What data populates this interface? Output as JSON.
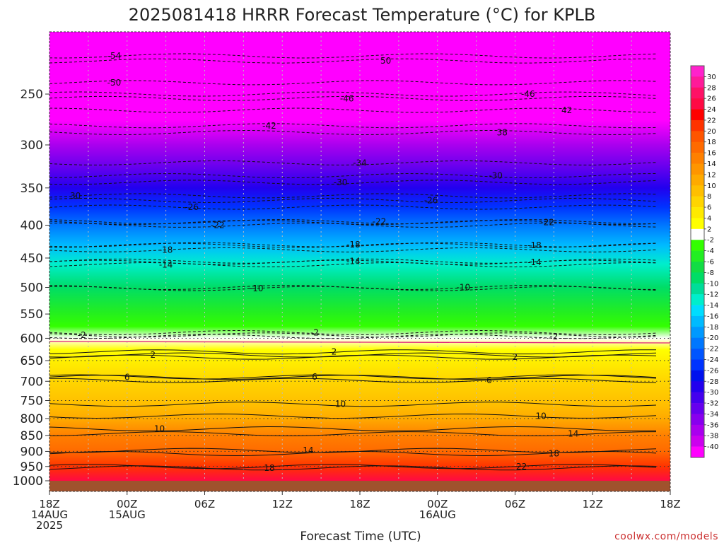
{
  "chart_data": {
    "type": "heatmap",
    "title": "2025081418 HRRR Forecast Temperature (°C) for KPLB",
    "xlabel": "Forecast Time (UTC)",
    "ylabel": "",
    "credit": "coolwx.com/models",
    "x_ticks": [
      {
        "hour": 0,
        "lines": [
          "18Z",
          "14AUG",
          "2025"
        ]
      },
      {
        "hour": 6,
        "lines": [
          "00Z",
          "15AUG"
        ]
      },
      {
        "hour": 12,
        "lines": [
          "06Z"
        ]
      },
      {
        "hour": 18,
        "lines": [
          "12Z"
        ]
      },
      {
        "hour": 24,
        "lines": [
          "18Z"
        ]
      },
      {
        "hour": 30,
        "lines": [
          "00Z",
          "16AUG"
        ]
      },
      {
        "hour": 36,
        "lines": [
          "06Z"
        ]
      },
      {
        "hour": 42,
        "lines": [
          "12Z"
        ]
      },
      {
        "hour": 48,
        "lines": [
          "18Z"
        ]
      }
    ],
    "xlim": [
      0,
      48
    ],
    "ylim": [
      1000,
      200
    ],
    "y_scale": "log",
    "y_ticks": [
      250,
      300,
      350,
      400,
      450,
      500,
      550,
      600,
      650,
      700,
      750,
      800,
      850,
      900,
      950,
      1000
    ],
    "grid": true,
    "colorbar": {
      "position": "right",
      "levels": [
        30,
        28,
        26,
        24,
        22,
        20,
        18,
        16,
        14,
        12,
        10,
        8,
        6,
        4,
        2,
        -2,
        -4,
        -6,
        -8,
        -10,
        -12,
        -14,
        -16,
        -18,
        -20,
        -22,
        -24,
        -26,
        -28,
        -30,
        -32,
        -34,
        -36,
        -38,
        -40
      ],
      "colors": [
        "#ff22cc",
        "#ff1a99",
        "#ff1166",
        "#ff0a44",
        "#ff0000",
        "#ff3300",
        "#ff5500",
        "#ff6a00",
        "#ff8000",
        "#ff9500",
        "#ffaa00",
        "#ffbf00",
        "#ffd500",
        "#ffea00",
        "#ffff00",
        "#ffffff",
        "#33ff00",
        "#22ee22",
        "#11dd44",
        "#00dd66",
        "#00dd99",
        "#00eecc",
        "#00ddff",
        "#00bbff",
        "#0099ff",
        "#0077ff",
        "#0055ff",
        "#0033ff",
        "#0011ee",
        "#2200ee",
        "#4400ee",
        "#6600ee",
        "#8800ee",
        "#aa00ee",
        "#cc00ee",
        "#ff00ff"
      ]
    },
    "temperature_profile": [
      {
        "p": 200,
        "t": -58
      },
      {
        "p": 225,
        "t": -54
      },
      {
        "p": 250,
        "t": -48
      },
      {
        "p": 275,
        "t": -43
      },
      {
        "p": 300,
        "t": -38
      },
      {
        "p": 325,
        "t": -34
      },
      {
        "p": 350,
        "t": -30
      },
      {
        "p": 375,
        "t": -26
      },
      {
        "p": 400,
        "t": -22
      },
      {
        "p": 430,
        "t": -18
      },
      {
        "p": 460,
        "t": -14
      },
      {
        "p": 500,
        "t": -10
      },
      {
        "p": 545,
        "t": -6
      },
      {
        "p": 575,
        "t": -3
      },
      {
        "p": 600,
        "t": 0
      },
      {
        "p": 625,
        "t": 2
      },
      {
        "p": 660,
        "t": 4
      },
      {
        "p": 700,
        "t": 6
      },
      {
        "p": 760,
        "t": 9
      },
      {
        "p": 800,
        "t": 11
      },
      {
        "p": 850,
        "t": 14
      },
      {
        "p": 900,
        "t": 17
      },
      {
        "p": 950,
        "t": 21
      },
      {
        "p": 1000,
        "t": 24
      }
    ],
    "contour_labels": [
      {
        "hour": 5,
        "p": 218,
        "text": "-54"
      },
      {
        "hour": 26,
        "p": 222,
        "text": "50"
      },
      {
        "hour": 5,
        "p": 240,
        "text": "-50"
      },
      {
        "hour": 23,
        "p": 254,
        "text": "-46"
      },
      {
        "hour": 37,
        "p": 250,
        "text": "-46"
      },
      {
        "hour": 40,
        "p": 265,
        "text": "42"
      },
      {
        "hour": 17,
        "p": 280,
        "text": "-42"
      },
      {
        "hour": 35,
        "p": 287,
        "text": "38"
      },
      {
        "hour": 24,
        "p": 320,
        "text": "-34"
      },
      {
        "hour": 22.5,
        "p": 343,
        "text": "-30"
      },
      {
        "hour": 34.5,
        "p": 335,
        "text": "-30"
      },
      {
        "hour": 2,
        "p": 360,
        "text": "30"
      },
      {
        "hour": 11,
        "p": 375,
        "text": "-26"
      },
      {
        "hour": 29.5,
        "p": 366,
        "text": "-26"
      },
      {
        "hour": 13,
        "p": 400,
        "text": "-22"
      },
      {
        "hour": 25.5,
        "p": 395,
        "text": "-22"
      },
      {
        "hour": 38.5,
        "p": 396,
        "text": "-22"
      },
      {
        "hour": 9,
        "p": 437,
        "text": "-18"
      },
      {
        "hour": 23.5,
        "p": 429,
        "text": "-18"
      },
      {
        "hour": 37.5,
        "p": 430,
        "text": "-18"
      },
      {
        "hour": 9,
        "p": 461,
        "text": "-14"
      },
      {
        "hour": 23.5,
        "p": 455,
        "text": "-14"
      },
      {
        "hour": 37.5,
        "p": 457,
        "text": "-14"
      },
      {
        "hour": 16,
        "p": 502,
        "text": "-10"
      },
      {
        "hour": 32,
        "p": 500,
        "text": "-10"
      },
      {
        "hour": 2.5,
        "p": 593,
        "text": "-2"
      },
      {
        "hour": 20.5,
        "p": 588,
        "text": "-2"
      },
      {
        "hour": 39,
        "p": 596,
        "text": "-2"
      },
      {
        "hour": 8,
        "p": 637,
        "text": "2"
      },
      {
        "hour": 22,
        "p": 630,
        "text": "2"
      },
      {
        "hour": 36,
        "p": 642,
        "text": "2"
      },
      {
        "hour": 6,
        "p": 690,
        "text": "6"
      },
      {
        "hour": 20.5,
        "p": 689,
        "text": "6"
      },
      {
        "hour": 34,
        "p": 698,
        "text": "6"
      },
      {
        "hour": 8.5,
        "p": 830,
        "text": "10"
      },
      {
        "hour": 22.5,
        "p": 760,
        "text": "10"
      },
      {
        "hour": 38,
        "p": 793,
        "text": "10"
      },
      {
        "hour": 20,
        "p": 897,
        "text": "14"
      },
      {
        "hour": 40.5,
        "p": 845,
        "text": "14"
      },
      {
        "hour": 17,
        "p": 955,
        "text": "18"
      },
      {
        "hour": 39,
        "p": 907,
        "text": "18"
      },
      {
        "hour": 36.5,
        "p": 950,
        "text": "22"
      }
    ]
  }
}
